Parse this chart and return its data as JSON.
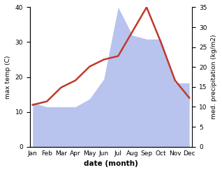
{
  "months": [
    "Jan",
    "Feb",
    "Mar",
    "Apr",
    "May",
    "Jun",
    "Jul",
    "Aug",
    "Sep",
    "Oct",
    "Nov",
    "Dec"
  ],
  "temp": [
    12,
    13,
    17,
    19,
    23,
    25,
    26,
    33,
    40,
    30,
    19,
    14
  ],
  "precip": [
    11,
    10,
    10,
    10,
    12,
    17,
    35,
    28,
    27,
    27,
    16,
    16
  ],
  "temp_color": "#c0392b",
  "precip_color": "#b8c4ee",
  "bg_color": "#ffffff",
  "left_ylabel": "max temp (C)",
  "right_ylabel": "med. precipitation (kg/m2)",
  "xlabel": "date (month)",
  "temp_ylim": [
    0,
    40
  ],
  "precip_ylim": [
    0,
    35
  ],
  "temp_yticks": [
    0,
    10,
    20,
    30,
    40
  ],
  "precip_yticks": [
    0,
    5,
    10,
    15,
    20,
    25,
    30,
    35
  ]
}
